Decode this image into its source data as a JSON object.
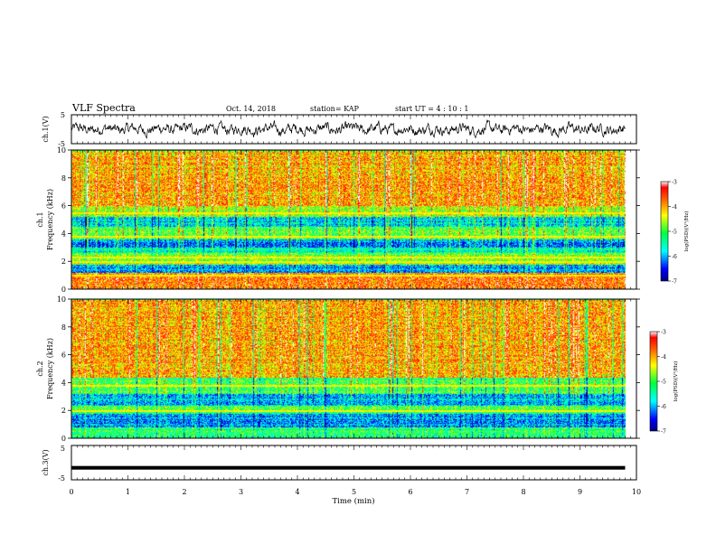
{
  "header": {
    "title": "VLF Spectra",
    "date": "Oct. 14, 2018",
    "station": "station= KAP",
    "start_ut": "start  UT =   4 : 10 : 1"
  },
  "chart_data": [
    {
      "type": "line",
      "panel": "ch1-waveform",
      "ylabel": "ch.1(V)",
      "ylim": [
        -5,
        5
      ],
      "yticks": [
        "5",
        "-5"
      ],
      "xlim": [
        0,
        10
      ],
      "description_values": {
        "data_end_min": 9.8,
        "typical_range": [
          -2.5,
          2.5
        ]
      }
    },
    {
      "type": "heatmap",
      "panel": "ch1-spectrogram",
      "ylabel_top": "ch.1",
      "ylabel": "Frequency (kHz)",
      "ylim": [
        0,
        10
      ],
      "yticks": [
        "0",
        "2",
        "4",
        "6",
        "8",
        "10"
      ],
      "xlim": [
        0,
        10
      ],
      "data_end_min": 9.8,
      "colorbar": {
        "label": "log(PSD)(V²/Hz)",
        "range": [
          -7,
          -3
        ],
        "ticks": [
          "-3",
          "-4",
          "-5",
          "-6",
          "-7"
        ]
      },
      "bands_kHz": [
        {
          "range": [
            0,
            1.2
          ],
          "level": -3.8
        },
        {
          "range": [
            1.2,
            1.8
          ],
          "level": -6.0
        },
        {
          "range": [
            1.8,
            2.6
          ],
          "level": -4.8
        },
        {
          "range": [
            2.6,
            3.0
          ],
          "level": -5.6
        },
        {
          "range": [
            3.0,
            3.6
          ],
          "level": -6.1
        },
        {
          "range": [
            3.6,
            4.5
          ],
          "level": -4.9
        },
        {
          "range": [
            4.5,
            5.2
          ],
          "level": -5.7
        },
        {
          "range": [
            5.2,
            6.0
          ],
          "level": -4.6
        },
        {
          "range": [
            6.0,
            10.0
          ],
          "level": -4.0
        }
      ],
      "horizontal_lines_kHz": [
        1.0,
        2.0,
        2.3,
        3.8,
        5.5
      ]
    },
    {
      "type": "heatmap",
      "panel": "ch2-spectrogram",
      "ylabel_top": "ch.2",
      "ylabel": "Frequency (kHz)",
      "ylim": [
        0,
        10
      ],
      "yticks": [
        "0",
        "2",
        "4",
        "6",
        "8",
        "10"
      ],
      "xlim": [
        0,
        10
      ],
      "data_end_min": 9.8,
      "colorbar": {
        "label": "log(PSD)(V²/Hz)",
        "range": [
          -7,
          -3
        ],
        "ticks": [
          "-3",
          "-4",
          "-5",
          "-6",
          "-7"
        ]
      },
      "bands_kHz": [
        {
          "range": [
            0,
            0.8
          ],
          "level": -5.2
        },
        {
          "range": [
            0.8,
            1.8
          ],
          "level": -6.1
        },
        {
          "range": [
            1.8,
            2.4
          ],
          "level": -5.1
        },
        {
          "range": [
            2.4,
            3.2
          ],
          "level": -5.9
        },
        {
          "range": [
            3.2,
            4.4
          ],
          "level": -5.0
        },
        {
          "range": [
            4.4,
            10.0
          ],
          "level": -4.0
        }
      ],
      "horizontal_lines_kHz": [
        2.0,
        3.8
      ]
    },
    {
      "type": "line",
      "panel": "ch3-waveform",
      "ylabel": "ch.3(V)",
      "ylim": [
        -5,
        5
      ],
      "yticks": [
        "5",
        "-5"
      ],
      "xlim": [
        0,
        10
      ],
      "xlabel": "Time (min)",
      "xticks": [
        "0",
        "1",
        "2",
        "3",
        "4",
        "5",
        "6",
        "7",
        "8",
        "9",
        "10"
      ],
      "values": {
        "constant_level": -1.5,
        "data_end_min": 9.8
      }
    }
  ]
}
